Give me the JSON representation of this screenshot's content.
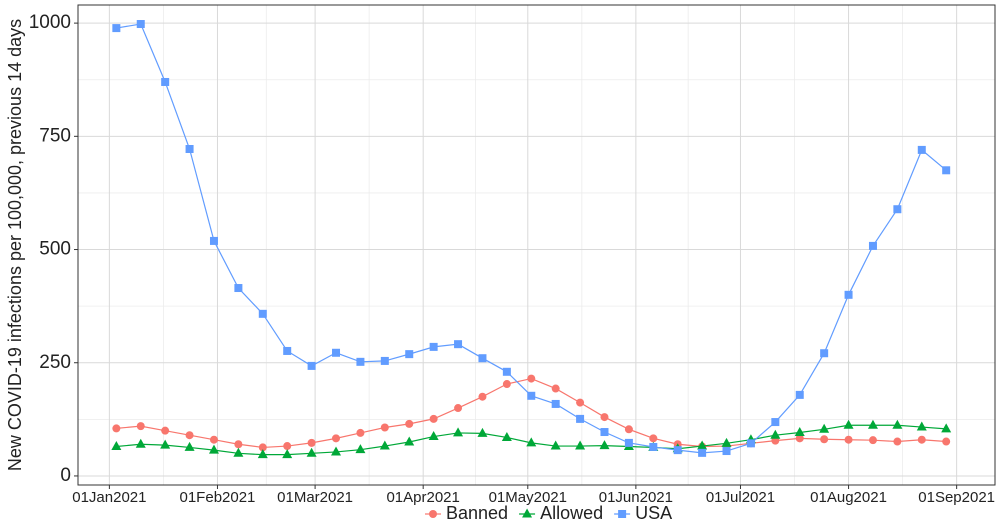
{
  "chart_data": {
    "type": "line",
    "y_label": "New COVID-19 infections per 100,000, previous 14 days",
    "x": [
      "2021-01-03",
      "2021-01-10",
      "2021-01-17",
      "2021-01-24",
      "2021-01-31",
      "2021-02-07",
      "2021-02-14",
      "2021-02-21",
      "2021-02-28",
      "2021-03-07",
      "2021-03-14",
      "2021-03-21",
      "2021-03-28",
      "2021-04-04",
      "2021-04-11",
      "2021-04-18",
      "2021-04-25",
      "2021-05-02",
      "2021-05-09",
      "2021-05-16",
      "2021-05-23",
      "2021-05-30",
      "2021-06-06",
      "2021-06-13",
      "2021-06-20",
      "2021-06-27",
      "2021-07-04",
      "2021-07-11",
      "2021-07-18",
      "2021-07-25",
      "2021-08-01",
      "2021-08-08",
      "2021-08-15",
      "2021-08-22",
      "2021-08-29"
    ],
    "series": [
      {
        "name": "Banned",
        "color": "#F8766D",
        "marker": "circle",
        "values": [
          105,
          110,
          100,
          90,
          80,
          70,
          63,
          66,
          73,
          83,
          95,
          107,
          115,
          126,
          150,
          175,
          203,
          215,
          193,
          162,
          130,
          103,
          83,
          70,
          65,
          66,
          72,
          78,
          83,
          81,
          80,
          79,
          76,
          80,
          76
        ]
      },
      {
        "name": "Allowed",
        "color": "#00A838",
        "marker": "triangle",
        "values": [
          65,
          70,
          68,
          63,
          57,
          50,
          47,
          47,
          50,
          53,
          58,
          66,
          75,
          87,
          95,
          94,
          85,
          73,
          66,
          66,
          67,
          65,
          63,
          60,
          66,
          72,
          80,
          90,
          96,
          103,
          112,
          112,
          112,
          108,
          104
        ]
      },
      {
        "name": "USA",
        "color": "#619CFF",
        "marker": "square",
        "values": [
          989,
          998,
          870,
          722,
          519,
          415,
          358,
          276,
          243,
          272,
          252,
          254,
          269,
          285,
          291,
          260,
          230,
          177,
          159,
          126,
          97,
          73,
          64,
          57,
          51,
          55,
          72,
          119,
          179,
          271,
          400,
          508,
          589,
          720,
          675
        ]
      }
    ],
    "xlim": [
      "2020-12-23",
      "2021-09-12"
    ],
    "xticks": [
      {
        "value": "2021-01-01",
        "label": "01Jan2021"
      },
      {
        "value": "2021-02-01",
        "label": "01Feb2021"
      },
      {
        "value": "2021-03-01",
        "label": "01Mar2021"
      },
      {
        "value": "2021-04-01",
        "label": "01Apr2021"
      },
      {
        "value": "2021-05-01",
        "label": "01May2021"
      },
      {
        "value": "2021-06-01",
        "label": "01Jun2021"
      },
      {
        "value": "2021-07-01",
        "label": "01Jul2021"
      },
      {
        "value": "2021-08-01",
        "label": "01Aug2021"
      },
      {
        "value": "2021-09-01",
        "label": "01Sep2021"
      }
    ],
    "ylim": [
      -20,
      1040
    ],
    "yticks": [
      0,
      250,
      500,
      750,
      1000
    ],
    "grid": true,
    "legend": "bottom"
  }
}
